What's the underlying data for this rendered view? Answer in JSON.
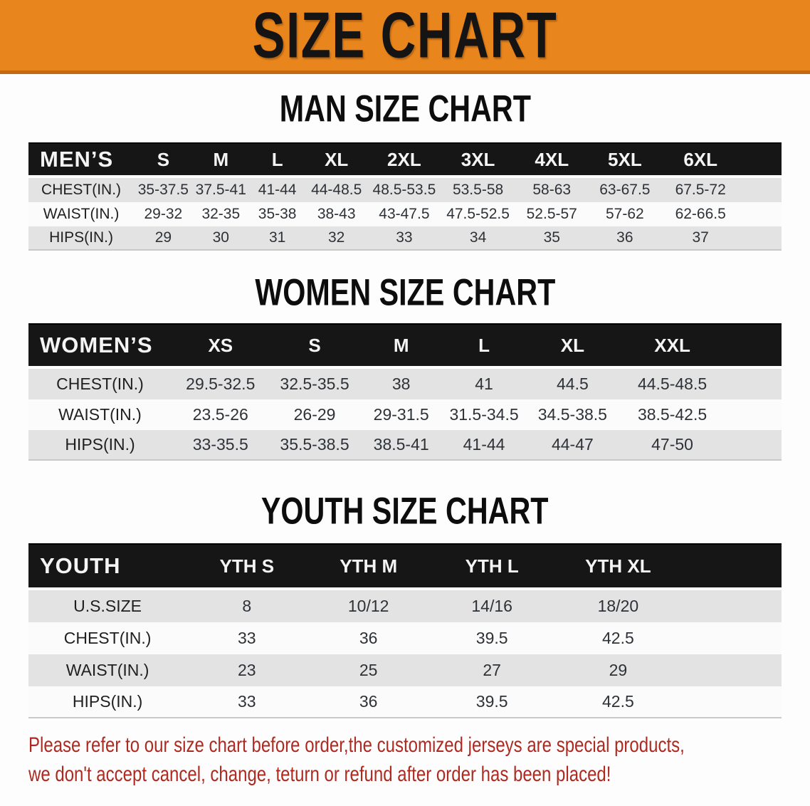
{
  "banner": {
    "title": "SIZE CHART",
    "bg_color": "#E8851C",
    "edge_color": "#C4690E"
  },
  "sections": [
    {
      "id": "men",
      "heading": "MAN SIZE CHART",
      "corner_label": "MEN’S",
      "sizes": [
        "S",
        "M",
        "L",
        "XL",
        "2XL",
        "3XL",
        "4XL",
        "5XL",
        "6XL"
      ],
      "rows": [
        {
          "label": "CHEST(IN.)",
          "values": [
            "35-37.5",
            "37.5-41",
            "41-44",
            "44-48.5",
            "48.5-53.5",
            "53.5-58",
            "58-63",
            "63-67.5",
            "67.5-72"
          ]
        },
        {
          "label": "WAIST(IN.)",
          "values": [
            "29-32",
            "32-35",
            "35-38",
            "38-43",
            "43-47.5",
            "47.5-52.5",
            "52.5-57",
            "57-62",
            "62-66.5"
          ]
        },
        {
          "label": "HIPS(IN.)",
          "values": [
            "29",
            "30",
            "31",
            "32",
            "33",
            "34",
            "35",
            "36",
            "37"
          ]
        }
      ]
    },
    {
      "id": "women",
      "heading": "WOMEN SIZE CHART",
      "corner_label": "WOMEN’S",
      "sizes": [
        "XS",
        "S",
        "M",
        "L",
        "XL",
        "XXL"
      ],
      "rows": [
        {
          "label": "CHEST(IN.)",
          "values": [
            "29.5-32.5",
            "32.5-35.5",
            "38",
            "41",
            "44.5",
            "44.5-48.5"
          ]
        },
        {
          "label": "WAIST(IN.)",
          "values": [
            "23.5-26",
            "26-29",
            "29-31.5",
            "31.5-34.5",
            "34.5-38.5",
            "38.5-42.5"
          ]
        },
        {
          "label": "HIPS(IN.)",
          "values": [
            "33-35.5",
            "35.5-38.5",
            "38.5-41",
            "41-44",
            "44-47",
            "47-50"
          ]
        }
      ]
    },
    {
      "id": "youth",
      "heading": "YOUTH SIZE CHART",
      "corner_label": "YOUTH",
      "sizes": [
        "YTH S",
        "YTH M",
        "YTH L",
        "YTH XL"
      ],
      "rows": [
        {
          "label": "U.S.SIZE",
          "values": [
            "8",
            "10/12",
            "14/16",
            "18/20"
          ]
        },
        {
          "label": "CHEST(IN.)",
          "values": [
            "33",
            "36",
            "39.5",
            "42.5"
          ]
        },
        {
          "label": "WAIST(IN.)",
          "values": [
            "23",
            "25",
            "27",
            "29"
          ]
        },
        {
          "label": "HIPS(IN.)",
          "values": [
            "33",
            "36",
            "39.5",
            "42.5"
          ]
        }
      ]
    }
  ],
  "footnote": {
    "color": "#AE2A21",
    "lines": [
      "Please refer to our size chart before order,the customized jerseys are special products,",
      "we don't accept cancel, change, teturn or refund after order has been placed!"
    ]
  }
}
